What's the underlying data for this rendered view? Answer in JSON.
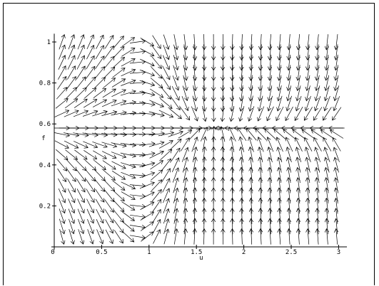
{
  "chart_data": {
    "type": "vector-field",
    "title": "",
    "xlabel": "u",
    "ylabel": "f",
    "xlim": [
      0,
      3.05
    ],
    "ylim": [
      0,
      1.03
    ],
    "x_ticks": [
      "0",
      "0.5",
      "1",
      "1.5",
      "2",
      "2.5",
      "3"
    ],
    "x_tick_values": [
      0,
      0.5,
      1,
      1.5,
      2,
      2.5,
      3
    ],
    "y_ticks": [
      "0.2",
      "0.4",
      "0.6",
      "0.8",
      "1"
    ],
    "y_tick_values": [
      0.2,
      0.4,
      0.6,
      0.8,
      1
    ],
    "grid": false,
    "field": {
      "equilibrium": {
        "u": 1.7,
        "f": 0.58
      },
      "u_samples": [
        0.08,
        0.18,
        0.28,
        0.38,
        0.48,
        0.58,
        0.68,
        0.78,
        0.88,
        0.98,
        1.08,
        1.18,
        1.28,
        1.38,
        1.48,
        1.58,
        1.68,
        1.78,
        1.88,
        1.98,
        2.08,
        2.18,
        2.28,
        2.38,
        2.48,
        2.58,
        2.68,
        2.78,
        2.88,
        2.98
      ],
      "f_samples": [
        0.05,
        0.1,
        0.15,
        0.2,
        0.25,
        0.3,
        0.35,
        0.4,
        0.45,
        0.5,
        0.55,
        0.58,
        0.65,
        0.7,
        0.75,
        0.8,
        0.85,
        0.9,
        0.95,
        1.0
      ]
    }
  }
}
